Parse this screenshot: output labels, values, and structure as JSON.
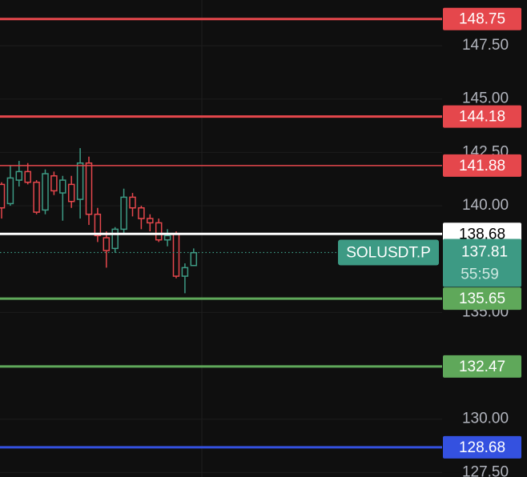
{
  "chart_data": {
    "type": "candlestick",
    "ylim": [
      127.29,
      149.64
    ],
    "yticks": [
      {
        "value": 147.5,
        "label": "147.50"
      },
      {
        "value": 145,
        "label": "145.00"
      },
      {
        "value": 142.5,
        "label": "142.50"
      },
      {
        "value": 140,
        "label": "140.00"
      },
      {
        "value": 135,
        "label": "135.00"
      },
      {
        "value": 130,
        "label": "130.00"
      },
      {
        "value": 127.5,
        "label": "127.50"
      }
    ],
    "grid": true,
    "up_color": "#3d9a84",
    "down_color": "#e5474c",
    "open": [
      141.0,
      140.1,
      141.2,
      141.6,
      141.1,
      139.8,
      141.4,
      140.6,
      141.0,
      140.3,
      142.0,
      139.6,
      138.5,
      138.0,
      138.9,
      140.4,
      139.9,
      139.4,
      139.2,
      138.4,
      138.7,
      136.7,
      137.2
    ],
    "high": [
      141.1,
      141.9,
      142.1,
      142.0,
      141.2,
      141.7,
      141.6,
      141.4,
      141.4,
      142.7,
      142.3,
      139.9,
      138.8,
      139.0,
      140.8,
      140.6,
      140.0,
      139.6,
      139.4,
      138.9,
      138.8,
      137.3,
      138.0
    ],
    "low": [
      139.4,
      140.0,
      140.9,
      141.0,
      139.6,
      139.6,
      140.5,
      139.3,
      139.9,
      139.4,
      139.1,
      138.3,
      137.1,
      137.8,
      138.7,
      139.5,
      138.9,
      138.8,
      138.3,
      138.1,
      136.6,
      135.9,
      137.2
    ],
    "close": [
      139.9,
      141.3,
      141.6,
      141.1,
      139.7,
      141.5,
      140.7,
      141.2,
      140.2,
      142.0,
      139.6,
      138.6,
      137.9,
      138.9,
      140.4,
      139.9,
      139.4,
      139.2,
      138.4,
      138.6,
      136.7,
      137.1,
      137.8
    ],
    "levels": [
      {
        "value": 148.75,
        "color": "#e5474c"
      },
      {
        "value": 144.18,
        "color": "#e5474c"
      },
      {
        "value": 141.88,
        "color": "#e5474c"
      },
      {
        "value": 138.68,
        "color": "#ffffff"
      },
      {
        "value": 135.65,
        "color": "#5fa85a"
      },
      {
        "value": 132.47,
        "color": "#5fa85a"
      },
      {
        "value": 128.68,
        "color": "#3451e0"
      }
    ],
    "last_price": {
      "symbol": "SOLUSDT.P",
      "value": 137.81,
      "countdown": "55:59",
      "color": "#3d9a84"
    }
  }
}
